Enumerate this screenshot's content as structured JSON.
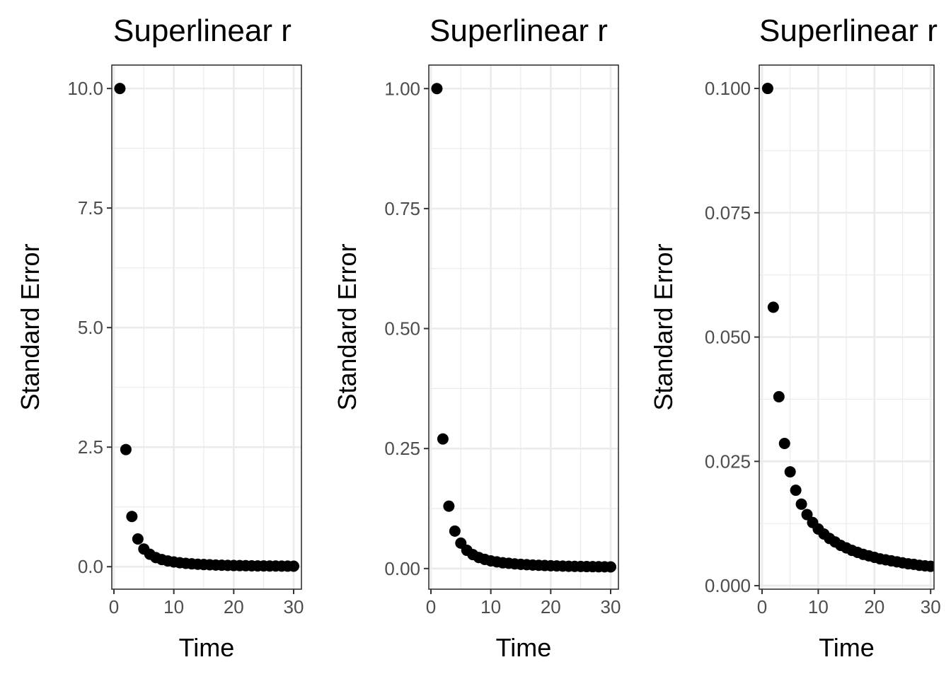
{
  "chart_data": [
    {
      "type": "scatter",
      "title": "Superlinear r",
      "xlabel": "Time",
      "ylabel": "Standard Error",
      "xlim": [
        -0.35,
        31.3
      ],
      "ylim": [
        -0.47,
        10.49
      ],
      "xticks": [
        0,
        10,
        20,
        30
      ],
      "xtick_labels": [
        "0",
        "10",
        "20",
        "30"
      ],
      "yticks": [
        0,
        2.5,
        5,
        7.5,
        10
      ],
      "ytick_labels": [
        "0.0",
        "2.5",
        "5.0",
        "7.5",
        "10.0"
      ],
      "grid": true,
      "x": [
        1,
        2,
        3,
        4,
        5,
        6,
        7,
        8,
        9,
        10,
        11,
        12,
        13,
        14,
        15,
        16,
        17,
        18,
        19,
        20,
        21,
        22,
        23,
        24,
        25,
        26,
        27,
        28,
        29,
        30
      ],
      "y": [
        10,
        2.45,
        1.05,
        0.58,
        0.37,
        0.26,
        0.19,
        0.15,
        0.12,
        0.1,
        0.083,
        0.07,
        0.06,
        0.052,
        0.045,
        0.04,
        0.035,
        0.031,
        0.028,
        0.025,
        0.023,
        0.021,
        0.019,
        0.017,
        0.016,
        0.015,
        0.014,
        0.013,
        0.012,
        0.011
      ]
    },
    {
      "type": "scatter",
      "title": "Superlinear r",
      "xlabel": "Time",
      "ylabel": "Standard Error",
      "xlim": [
        -0.35,
        31.3
      ],
      "ylim": [
        -0.043,
        1.049
      ],
      "xticks": [
        0,
        10,
        20,
        30
      ],
      "xtick_labels": [
        "0",
        "10",
        "20",
        "30"
      ],
      "yticks": [
        0,
        0.25,
        0.5,
        0.75,
        1
      ],
      "ytick_labels": [
        "0.00",
        "0.25",
        "0.50",
        "0.75",
        "1.00"
      ],
      "grid": true,
      "x": [
        1,
        2,
        3,
        4,
        5,
        6,
        7,
        8,
        9,
        10,
        11,
        12,
        13,
        14,
        15,
        16,
        17,
        18,
        19,
        20,
        21,
        22,
        23,
        24,
        25,
        26,
        27,
        28,
        29,
        30
      ],
      "y": [
        1,
        0.27,
        0.13,
        0.078,
        0.053,
        0.038,
        0.029,
        0.023,
        0.019,
        0.016,
        0.014,
        0.012,
        0.011,
        0.0097,
        0.0088,
        0.008,
        0.0073,
        0.0068,
        0.0063,
        0.0058,
        0.0055,
        0.0051,
        0.0048,
        0.0046,
        0.0043,
        0.0041,
        0.0039,
        0.0037,
        0.0036,
        0.0034
      ]
    },
    {
      "type": "scatter",
      "title": "Superlinear r",
      "xlabel": "Time",
      "ylabel": "Standard Error",
      "xlim": [
        -0.5,
        30.6
      ],
      "ylim": [
        -0.0007,
        0.1047
      ],
      "xticks": [
        0,
        10,
        20,
        30
      ],
      "xtick_labels": [
        "0",
        "10",
        "20",
        "30"
      ],
      "yticks": [
        0,
        0.025,
        0.05,
        0.075,
        0.1
      ],
      "ytick_labels": [
        "0.000",
        "0.025",
        "0.050",
        "0.075",
        "0.100"
      ],
      "grid": true,
      "x": [
        1,
        2,
        3,
        4,
        5,
        6,
        7,
        8,
        9,
        10,
        11,
        12,
        13,
        14,
        15,
        16,
        17,
        18,
        19,
        20,
        21,
        22,
        23,
        24,
        25,
        26,
        27,
        28,
        29,
        30
      ],
      "y": [
        0.1,
        0.056,
        0.038,
        0.0286,
        0.0229,
        0.0192,
        0.0164,
        0.0143,
        0.0127,
        0.0114,
        0.0104,
        0.0095,
        0.0088,
        0.0081,
        0.0076,
        0.0071,
        0.0067,
        0.0063,
        0.006,
        0.0057,
        0.0054,
        0.0052,
        0.005,
        0.0048,
        0.0046,
        0.0044,
        0.0043,
        0.0041,
        0.004,
        0.0039
      ]
    }
  ]
}
